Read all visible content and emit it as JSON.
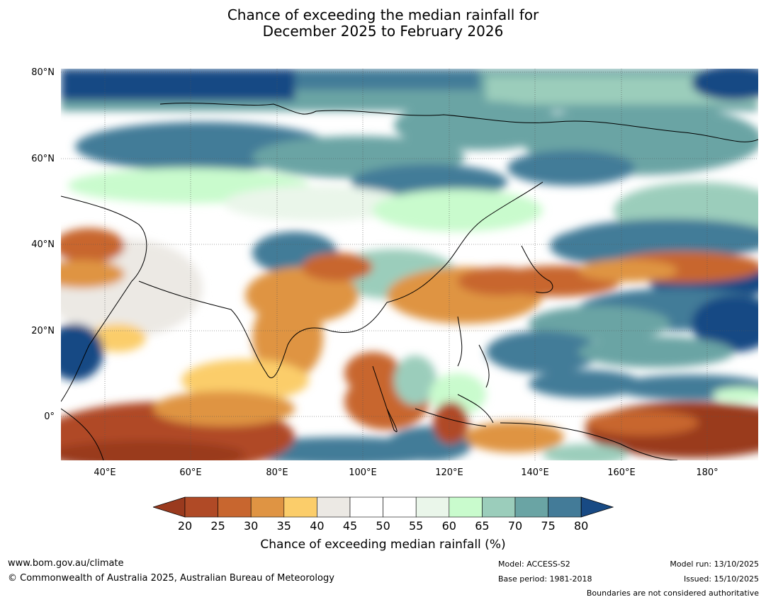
{
  "title_line1": "Chance of exceeding the median rainfall for",
  "title_line2": "December 2025 to February 2026",
  "map": {
    "lat_labels": [
      "80°N",
      "60°N",
      "40°N",
      "20°N",
      "0°"
    ],
    "lon_labels": [
      "40°E",
      "60°E",
      "80°E",
      "100°E",
      "120°E",
      "140°E",
      "160°E",
      "180°"
    ],
    "lat_range": [
      -10,
      80
    ],
    "lon_range": [
      30,
      192
    ]
  },
  "colorbar": {
    "ticks": [
      "20",
      "25",
      "30",
      "35",
      "40",
      "45",
      "50",
      "55",
      "60",
      "65",
      "70",
      "75",
      "80"
    ],
    "colors": [
      "#9a3a1e",
      "#b04a26",
      "#c8662f",
      "#df9443",
      "#fbcd6a",
      "#ece9e4",
      "#ffffff",
      "#ffffff",
      "#eaf6ea",
      "#c9fbcd",
      "#9bcdbb",
      "#6aa4a4",
      "#437b98",
      "#184a84"
    ],
    "label": "Chance of exceeding median rainfall (%)"
  },
  "footer": {
    "url": "www.bom.gov.au/climate",
    "copyright": "© Commonwealth of Australia 2025, Australian Bureau of Meteorology",
    "model": "Model: ACCESS-S2",
    "base_period": "Base period: 1981-2018",
    "model_run": "Model run: 13/10/2025",
    "issued": "Issued: 15/10/2025",
    "disclaimer": "Boundaries are not considered authoritative"
  }
}
